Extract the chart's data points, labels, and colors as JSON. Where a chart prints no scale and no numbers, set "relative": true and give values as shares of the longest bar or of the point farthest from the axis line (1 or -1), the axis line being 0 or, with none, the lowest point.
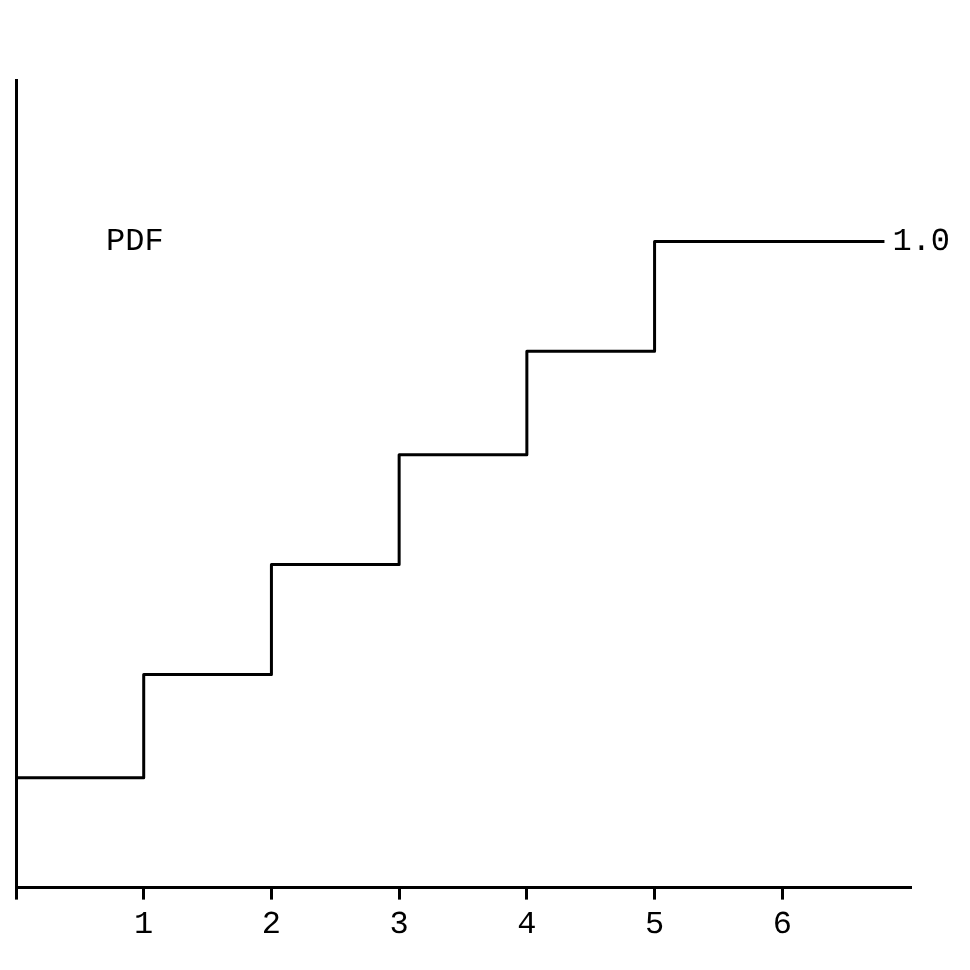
{
  "chart_data": {
    "type": "step",
    "title": "PDF",
    "relative": true,
    "x": [
      0,
      1,
      2,
      3,
      4,
      5,
      6,
      6.8
    ],
    "values": [
      0,
      0.17,
      0.33,
      0.5,
      0.67,
      0.83,
      1,
      1
    ],
    "color": "#000000",
    "xlim": [
      0,
      7
    ],
    "xticks": [
      {
        "value": 0,
        "label": null
      },
      1,
      2,
      3,
      4,
      5,
      6
    ],
    "annotations": [
      {
        "text": "1.0",
        "x": 6.8,
        "y": 1
      }
    ],
    "grid": false,
    "legend": false,
    "marker": "none",
    "line_style": "solid"
  }
}
